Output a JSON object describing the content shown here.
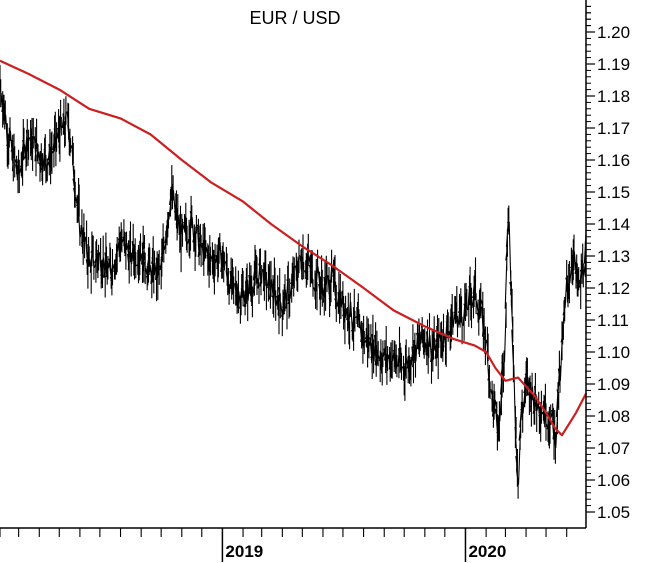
{
  "chart_data": {
    "type": "line",
    "title": "EUR / USD",
    "xlabel": "",
    "ylabel": "",
    "y_axis_position": "right",
    "ylim": [
      1.045,
      1.21
    ],
    "x_range": [
      "2018-02-01",
      "2020-06-30"
    ],
    "y_ticks": [
      "1.05",
      "1.06",
      "1.07",
      "1.08",
      "1.09",
      "1.10",
      "1.11",
      "1.12",
      "1.13",
      "1.14",
      "1.15",
      "1.16",
      "1.17",
      "1.18",
      "1.19",
      "1.20"
    ],
    "year_labels": [
      {
        "label": "2019",
        "date": "2019-01-01"
      },
      {
        "label": "2020",
        "date": "2020-01-01"
      }
    ],
    "grid": false,
    "legend": "none",
    "colors": {
      "price": "#000000",
      "moving_average": "#cc1f1f"
    },
    "series": [
      {
        "key": "price",
        "style": "daily-bars",
        "x": [
          "2018-02-01",
          "2018-02-15",
          "2018-03-01",
          "2018-03-15",
          "2018-04-01",
          "2018-04-15",
          "2018-05-01",
          "2018-05-15",
          "2018-06-01",
          "2018-06-15",
          "2018-07-01",
          "2018-07-15",
          "2018-08-01",
          "2018-08-15",
          "2018-09-01",
          "2018-09-15",
          "2018-10-01",
          "2018-10-15",
          "2018-11-01",
          "2018-11-15",
          "2018-12-01",
          "2018-12-15",
          "2019-01-01",
          "2019-01-15",
          "2019-02-01",
          "2019-02-15",
          "2019-03-01",
          "2019-03-15",
          "2019-04-01",
          "2019-04-15",
          "2019-05-01",
          "2019-05-15",
          "2019-06-01",
          "2019-06-15",
          "2019-07-01",
          "2019-07-15",
          "2019-08-01",
          "2019-08-15",
          "2019-09-01",
          "2019-09-15",
          "2019-10-01",
          "2019-10-15",
          "2019-11-01",
          "2019-11-15",
          "2019-12-01",
          "2019-12-15",
          "2020-01-01",
          "2020-01-15",
          "2020-02-01",
          "2020-02-10",
          "2020-02-20",
          "2020-03-01",
          "2020-03-05",
          "2020-03-10",
          "2020-03-15",
          "2020-03-20",
          "2020-03-25",
          "2020-04-01",
          "2020-04-15",
          "2020-05-01",
          "2020-05-15",
          "2020-05-25",
          "2020-06-01",
          "2020-06-10",
          "2020-06-20",
          "2020-06-30"
        ],
        "values": [
          1.185,
          1.165,
          1.155,
          1.168,
          1.162,
          1.16,
          1.168,
          1.172,
          1.14,
          1.128,
          1.13,
          1.124,
          1.135,
          1.13,
          1.132,
          1.125,
          1.125,
          1.15,
          1.135,
          1.14,
          1.132,
          1.128,
          1.13,
          1.12,
          1.118,
          1.122,
          1.125,
          1.12,
          1.115,
          1.12,
          1.13,
          1.125,
          1.12,
          1.122,
          1.115,
          1.11,
          1.105,
          1.102,
          1.098,
          1.098,
          1.095,
          1.1,
          1.105,
          1.1,
          1.105,
          1.112,
          1.113,
          1.12,
          1.105,
          1.085,
          1.075,
          1.108,
          1.145,
          1.118,
          1.085,
          1.062,
          1.08,
          1.09,
          1.085,
          1.082,
          1.075,
          1.1,
          1.12,
          1.13,
          1.118,
          1.134
        ]
      },
      {
        "key": "moving_average",
        "style": "line",
        "x": [
          "2018-02-01",
          "2018-03-15",
          "2018-05-01",
          "2018-06-15",
          "2018-08-01",
          "2018-09-15",
          "2018-11-01",
          "2018-12-15",
          "2019-02-01",
          "2019-03-15",
          "2019-05-01",
          "2019-06-15",
          "2019-08-01",
          "2019-09-15",
          "2019-11-01",
          "2019-12-15",
          "2020-01-15",
          "2020-02-01",
          "2020-02-15",
          "2020-03-01",
          "2020-03-20",
          "2020-04-15",
          "2020-05-01",
          "2020-05-15",
          "2020-05-25",
          "2020-06-15",
          "2020-06-30"
        ],
        "values": [
          1.191,
          1.187,
          1.182,
          1.176,
          1.173,
          1.168,
          1.16,
          1.153,
          1.147,
          1.14,
          1.133,
          1.127,
          1.12,
          1.113,
          1.108,
          1.104,
          1.102,
          1.1,
          1.095,
          1.091,
          1.092,
          1.086,
          1.081,
          1.076,
          1.074,
          1.081,
          1.087
        ]
      }
    ]
  }
}
